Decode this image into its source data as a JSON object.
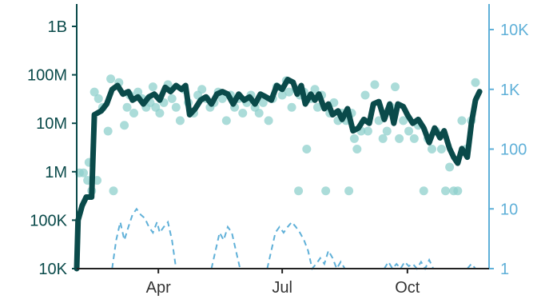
{
  "chart_data": {
    "type": "line",
    "colors": {
      "main_line": "#0a4a4a",
      "points": "#8fd0cc",
      "dashed_line": "#5fb0d8",
      "left_axis": "#0a4a4a",
      "right_axis": "#5fb0d8"
    },
    "x_range": [
      "2020-02-01",
      "2020-11-30"
    ],
    "x_ticks": [
      {
        "date": "2020-04-01",
        "label": "Apr"
      },
      {
        "date": "2020-07-01",
        "label": "Jul"
      },
      {
        "date": "2020-10-01",
        "label": "Oct"
      }
    ],
    "left_axis": {
      "scale": "log",
      "ylim": [
        10000,
        1000000000
      ],
      "ticks": [
        {
          "value": 1000000000,
          "label": "1B"
        },
        {
          "value": 100000000,
          "label": "100M"
        },
        {
          "value": 10000000,
          "label": "10M"
        },
        {
          "value": 1000000,
          "label": "1M"
        },
        {
          "value": 100000,
          "label": "100K"
        },
        {
          "value": 10000,
          "label": "10K"
        }
      ]
    },
    "right_axis": {
      "scale": "log",
      "ylim": [
        1,
        20000
      ],
      "ticks": [
        {
          "value": 10000,
          "label": "10K"
        },
        {
          "value": 1000,
          "label": "1K"
        },
        {
          "value": 100,
          "label": "100"
        },
        {
          "value": 10,
          "label": "10"
        },
        {
          "value": 1,
          "label": "1"
        }
      ]
    },
    "series": [
      {
        "kind": "line",
        "axis": "left",
        "points": [
          [
            "2020-02-01",
            10000
          ],
          [
            "2020-02-02",
            100000
          ],
          [
            "2020-02-05",
            200000
          ],
          [
            "2020-02-08",
            300000
          ],
          [
            "2020-02-12",
            300000
          ],
          [
            "2020-02-14",
            15000000
          ],
          [
            "2020-02-19",
            18000000
          ],
          [
            "2020-02-23",
            25000000
          ],
          [
            "2020-02-27",
            50000000
          ],
          [
            "2020-03-02",
            60000000
          ],
          [
            "2020-03-06",
            40000000
          ],
          [
            "2020-03-10",
            45000000
          ],
          [
            "2020-03-13",
            30000000
          ],
          [
            "2020-03-17",
            35000000
          ],
          [
            "2020-03-21",
            25000000
          ],
          [
            "2020-03-25",
            35000000
          ],
          [
            "2020-03-29",
            40000000
          ],
          [
            "2020-04-02",
            30000000
          ],
          [
            "2020-04-06",
            55000000
          ],
          [
            "2020-04-10",
            45000000
          ],
          [
            "2020-04-14",
            60000000
          ],
          [
            "2020-04-18",
            50000000
          ],
          [
            "2020-04-21",
            60000000
          ],
          [
            "2020-04-24",
            15000000
          ],
          [
            "2020-04-28",
            20000000
          ],
          [
            "2020-05-02",
            30000000
          ],
          [
            "2020-05-06",
            35000000
          ],
          [
            "2020-05-10",
            25000000
          ],
          [
            "2020-05-14",
            40000000
          ],
          [
            "2020-05-18",
            45000000
          ],
          [
            "2020-05-22",
            40000000
          ],
          [
            "2020-05-26",
            25000000
          ],
          [
            "2020-05-30",
            40000000
          ],
          [
            "2020-06-03",
            30000000
          ],
          [
            "2020-06-07",
            35000000
          ],
          [
            "2020-06-11",
            25000000
          ],
          [
            "2020-06-15",
            40000000
          ],
          [
            "2020-06-19",
            35000000
          ],
          [
            "2020-06-23",
            30000000
          ],
          [
            "2020-06-27",
            60000000
          ],
          [
            "2020-07-01",
            50000000
          ],
          [
            "2020-07-05",
            80000000
          ],
          [
            "2020-07-09",
            70000000
          ],
          [
            "2020-07-12",
            40000000
          ],
          [
            "2020-07-15",
            60000000
          ],
          [
            "2020-07-18",
            25000000
          ],
          [
            "2020-07-22",
            40000000
          ],
          [
            "2020-07-25",
            30000000
          ],
          [
            "2020-07-28",
            40000000
          ],
          [
            "2020-08-01",
            20000000
          ],
          [
            "2020-08-04",
            25000000
          ],
          [
            "2020-08-07",
            15000000
          ],
          [
            "2020-08-11",
            18000000
          ],
          [
            "2020-08-14",
            12000000
          ],
          [
            "2020-08-18",
            20000000
          ],
          [
            "2020-08-22",
            7000000
          ],
          [
            "2020-08-26",
            8000000
          ],
          [
            "2020-08-30",
            12000000
          ],
          [
            "2020-09-03",
            10000000
          ],
          [
            "2020-09-06",
            25000000
          ],
          [
            "2020-09-10",
            28000000
          ],
          [
            "2020-09-14",
            12000000
          ],
          [
            "2020-09-18",
            25000000
          ],
          [
            "2020-09-21",
            10000000
          ],
          [
            "2020-09-24",
            25000000
          ],
          [
            "2020-09-28",
            22000000
          ],
          [
            "2020-10-01",
            15000000
          ],
          [
            "2020-10-05",
            10000000
          ],
          [
            "2020-10-09",
            12000000
          ],
          [
            "2020-10-13",
            8000000
          ],
          [
            "2020-10-17",
            4000000
          ],
          [
            "2020-10-21",
            8000000
          ],
          [
            "2020-10-25",
            5000000
          ],
          [
            "2020-10-28",
            7000000
          ],
          [
            "2020-11-01",
            3000000
          ],
          [
            "2020-11-04",
            2000000
          ],
          [
            "2020-11-07",
            1500000
          ],
          [
            "2020-11-10",
            3000000
          ],
          [
            "2020-11-14",
            2000000
          ],
          [
            "2020-11-17",
            10000000
          ],
          [
            "2020-11-20",
            30000000
          ],
          [
            "2020-11-23",
            45000000
          ]
        ]
      },
      {
        "kind": "points",
        "axis": "right",
        "points": [
          [
            "2020-02-03",
            40
          ],
          [
            "2020-02-06",
            40
          ],
          [
            "2020-02-09",
            30
          ],
          [
            "2020-02-10",
            60
          ],
          [
            "2020-02-12",
            20
          ],
          [
            "2020-02-14",
            900
          ],
          [
            "2020-02-16",
            30
          ],
          [
            "2020-02-17",
            700
          ],
          [
            "2020-02-20",
            500
          ],
          [
            "2020-02-24",
            200
          ],
          [
            "2020-02-26",
            1500
          ],
          [
            "2020-02-28",
            20
          ],
          [
            "2020-03-03",
            1300
          ],
          [
            "2020-03-07",
            250
          ],
          [
            "2020-03-09",
            500
          ],
          [
            "2020-03-11",
            800
          ],
          [
            "2020-03-14",
            400
          ],
          [
            "2020-03-17",
            900
          ],
          [
            "2020-03-20",
            700
          ],
          [
            "2020-03-23",
            500
          ],
          [
            "2020-03-26",
            600
          ],
          [
            "2020-03-28",
            1100
          ],
          [
            "2020-03-30",
            500
          ],
          [
            "2020-04-02",
            400
          ],
          [
            "2020-04-05",
            600
          ],
          [
            "2020-04-08",
            1200
          ],
          [
            "2020-04-11",
            700
          ],
          [
            "2020-04-14",
            500
          ],
          [
            "2020-04-17",
            300
          ],
          [
            "2020-04-20",
            1000
          ],
          [
            "2020-04-23",
            600
          ],
          [
            "2020-04-27",
            400
          ],
          [
            "2020-04-30",
            800
          ],
          [
            "2020-05-03",
            1000
          ],
          [
            "2020-05-06",
            700
          ],
          [
            "2020-05-09",
            500
          ],
          [
            "2020-05-12",
            600
          ],
          [
            "2020-05-15",
            900
          ],
          [
            "2020-05-18",
            700
          ],
          [
            "2020-05-21",
            300
          ],
          [
            "2020-05-24",
            800
          ],
          [
            "2020-05-27",
            500
          ],
          [
            "2020-05-30",
            700
          ],
          [
            "2020-06-02",
            400
          ],
          [
            "2020-06-05",
            600
          ],
          [
            "2020-06-08",
            800
          ],
          [
            "2020-06-11",
            500
          ],
          [
            "2020-06-14",
            400
          ],
          [
            "2020-06-17",
            600
          ],
          [
            "2020-06-21",
            300
          ],
          [
            "2020-06-24",
            700
          ],
          [
            "2020-06-27",
            1100
          ],
          [
            "2020-07-01",
            800
          ],
          [
            "2020-07-04",
            1400
          ],
          [
            "2020-07-06",
            900
          ],
          [
            "2020-07-08",
            500
          ],
          [
            "2020-07-11",
            1000
          ],
          [
            "2020-07-13",
            20
          ],
          [
            "2020-07-14",
            800
          ],
          [
            "2020-07-17",
            900
          ],
          [
            "2020-07-19",
            100
          ],
          [
            "2020-07-22",
            700
          ],
          [
            "2020-07-25",
            1000
          ],
          [
            "2020-07-27",
            500
          ],
          [
            "2020-07-30",
            800
          ],
          [
            "2020-08-02",
            20
          ],
          [
            "2020-08-05",
            400
          ],
          [
            "2020-08-08",
            600
          ],
          [
            "2020-08-11",
            300
          ],
          [
            "2020-08-14",
            400
          ],
          [
            "2020-08-17",
            300
          ],
          [
            "2020-08-19",
            20
          ],
          [
            "2020-08-21",
            400
          ],
          [
            "2020-08-23",
            150
          ],
          [
            "2020-08-25",
            100
          ],
          [
            "2020-08-28",
            200
          ],
          [
            "2020-08-31",
            800
          ],
          [
            "2020-09-02",
            200
          ],
          [
            "2020-09-07",
            1200
          ],
          [
            "2020-09-10",
            300
          ],
          [
            "2020-09-13",
            150
          ],
          [
            "2020-09-16",
            200
          ],
          [
            "2020-09-19",
            500
          ],
          [
            "2020-09-22",
            1100
          ],
          [
            "2020-09-25",
            150
          ],
          [
            "2020-09-28",
            300
          ],
          [
            "2020-10-02",
            200
          ],
          [
            "2020-10-06",
            150
          ],
          [
            "2020-10-09",
            250
          ],
          [
            "2020-10-13",
            20
          ],
          [
            "2020-10-16",
            150
          ],
          [
            "2020-10-19",
            100
          ],
          [
            "2020-10-22",
            200
          ],
          [
            "2020-10-26",
            100
          ],
          [
            "2020-10-29",
            20
          ],
          [
            "2020-11-01",
            50
          ],
          [
            "2020-11-04",
            20
          ],
          [
            "2020-11-07",
            20
          ],
          [
            "2020-11-10",
            300
          ],
          [
            "2020-11-13",
            100
          ],
          [
            "2020-11-17",
            300
          ],
          [
            "2020-11-20",
            1300
          ]
        ]
      },
      {
        "kind": "dashed-line",
        "axis": "right",
        "points": [
          [
            "2020-02-27",
            1
          ],
          [
            "2020-03-01",
            3
          ],
          [
            "2020-03-04",
            6
          ],
          [
            "2020-03-07",
            3
          ],
          [
            "2020-03-10",
            5
          ],
          [
            "2020-03-13",
            8
          ],
          [
            "2020-03-16",
            10
          ],
          [
            "2020-03-19",
            8
          ],
          [
            "2020-03-22",
            7
          ],
          [
            "2020-03-25",
            5
          ],
          [
            "2020-03-28",
            4
          ],
          [
            "2020-03-31",
            6
          ],
          [
            "2020-04-02",
            4
          ],
          [
            "2020-04-05",
            5
          ],
          [
            "2020-04-08",
            6
          ],
          [
            "2020-04-11",
            3
          ],
          [
            "2020-04-14",
            1
          ],
          [
            "2020-05-10",
            1
          ],
          [
            "2020-05-13",
            2
          ],
          [
            "2020-05-16",
            4
          ],
          [
            "2020-05-19",
            3
          ],
          [
            "2020-05-22",
            5
          ],
          [
            "2020-05-25",
            4
          ],
          [
            "2020-05-28",
            2
          ],
          [
            "2020-05-31",
            1
          ],
          [
            "2020-06-20",
            1
          ],
          [
            "2020-06-23",
            2
          ],
          [
            "2020-06-26",
            4
          ],
          [
            "2020-06-29",
            5
          ],
          [
            "2020-07-02",
            4
          ],
          [
            "2020-07-05",
            5
          ],
          [
            "2020-07-08",
            6
          ],
          [
            "2020-07-11",
            5
          ],
          [
            "2020-07-14",
            4
          ],
          [
            "2020-07-17",
            3
          ],
          [
            "2020-07-20",
            2
          ],
          [
            "2020-07-23",
            1
          ],
          [
            "2020-07-26",
            1.2
          ],
          [
            "2020-07-29",
            1.5
          ],
          [
            "2020-08-01",
            1.2
          ],
          [
            "2020-08-04",
            2
          ],
          [
            "2020-08-07",
            1.5
          ],
          [
            "2020-08-10",
            1
          ],
          [
            "2020-08-13",
            1.3
          ],
          [
            "2020-08-16",
            1
          ],
          [
            "2020-09-14",
            1
          ],
          [
            "2020-09-17",
            1.3
          ],
          [
            "2020-09-20",
            1
          ],
          [
            "2020-09-23",
            1.2
          ],
          [
            "2020-09-26",
            1
          ],
          [
            "2020-09-29",
            1.3
          ],
          [
            "2020-10-02",
            1.1
          ],
          [
            "2020-10-05",
            1.2
          ],
          [
            "2020-10-08",
            1
          ],
          [
            "2020-10-11",
            1.3
          ],
          [
            "2020-10-14",
            1
          ],
          [
            "2020-10-17",
            1.4
          ],
          [
            "2020-10-20",
            1
          ],
          [
            "2020-11-14",
            1
          ],
          [
            "2020-11-17",
            1.2
          ],
          [
            "2020-11-20",
            1
          ]
        ]
      }
    ]
  }
}
